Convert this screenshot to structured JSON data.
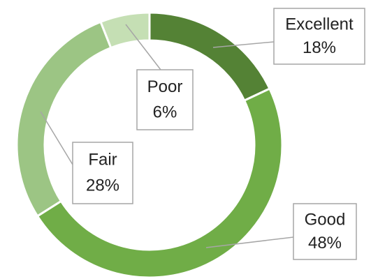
{
  "chart_data": {
    "type": "donut",
    "categories": [
      "Excellent",
      "Good",
      "Fair",
      "Poor"
    ],
    "values": [
      18,
      48,
      28,
      6
    ],
    "value_labels": [
      "18%",
      "48%",
      "28%",
      "6%"
    ],
    "colors": [
      "#548235",
      "#70ad47",
      "#9cc584",
      "#c5dfb4"
    ]
  }
}
